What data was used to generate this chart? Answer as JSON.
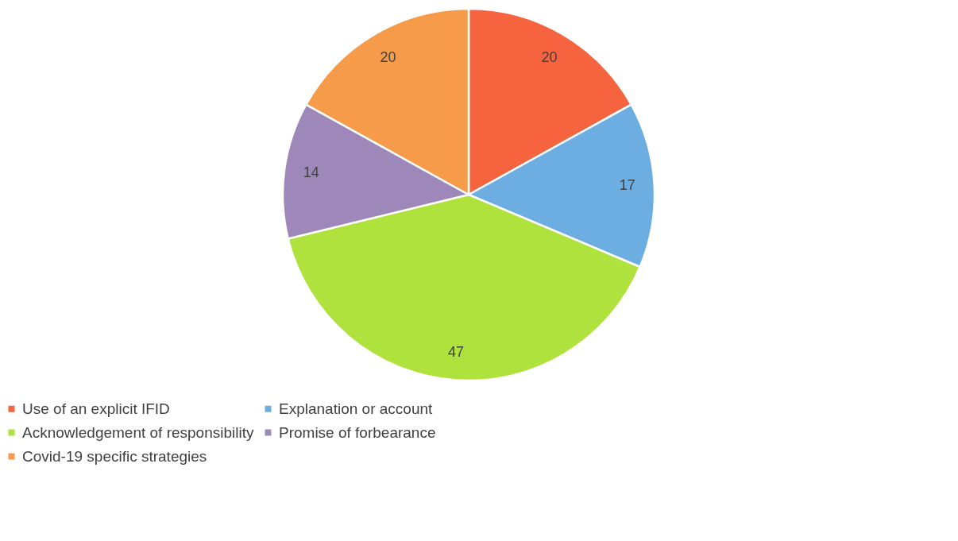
{
  "chart_data": {
    "type": "pie",
    "categories": [
      "Use of an explicit IFID",
      "Explanation or account",
      "Acknowledgement of responsibility",
      "Promise of forbearance",
      "Covid-19 specific strategies"
    ],
    "values": [
      20,
      17,
      47,
      14,
      20
    ],
    "colors": [
      "#f5643f",
      "#6caee2",
      "#afe23d",
      "#9e88b9",
      "#f59b4a"
    ],
    "data_labels": true,
    "legend": "bottom"
  }
}
